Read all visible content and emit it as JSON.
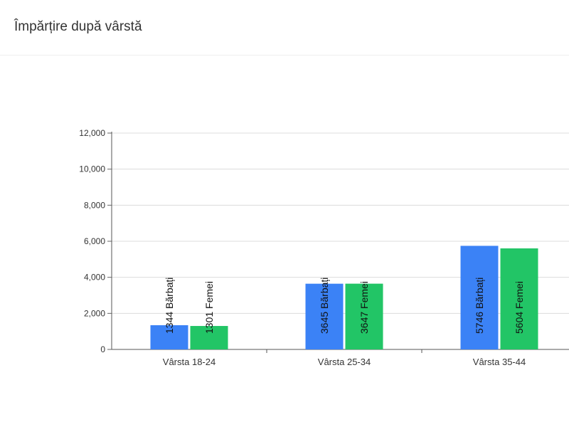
{
  "page": {
    "title": "Împărțire după vârstă"
  },
  "chart_data": {
    "type": "bar",
    "title": "",
    "xlabel": "",
    "ylabel": "",
    "ylim": [
      0,
      12000
    ],
    "yticks": [
      0,
      2000,
      4000,
      6000,
      8000,
      10000,
      12000
    ],
    "ytick_labels": [
      "0",
      "2,000",
      "4,000",
      "6,000",
      "8,000",
      "10,000",
      "12,000"
    ],
    "grid": true,
    "categories": [
      "Vârsta 18-24",
      "Vârsta 25-34",
      "Vârsta 35-44"
    ],
    "series": [
      {
        "name": "Bărbați",
        "color": "#3b82f6",
        "values": [
          1344,
          3645,
          5746
        ],
        "labels": [
          "1344 Bărbați",
          "3645 Bărbați",
          "5746 Bărbați"
        ]
      },
      {
        "name": "Femei",
        "color": "#22c566",
        "values": [
          1301,
          3647,
          5604
        ],
        "labels": [
          "1301 Femei",
          "3647 Femei",
          "5604 Femei"
        ]
      }
    ]
  }
}
